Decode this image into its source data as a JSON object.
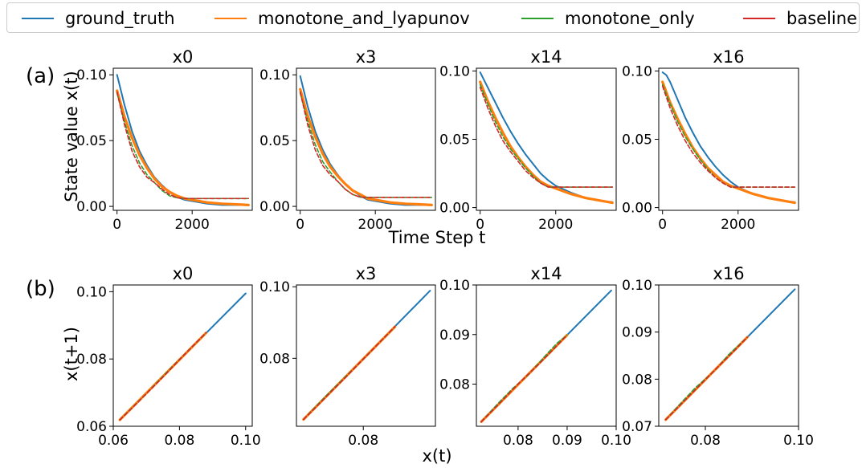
{
  "legend": {
    "entries": [
      {
        "label": "ground_truth",
        "color": "#1f77b4"
      },
      {
        "label": "monotone_and_lyapunov",
        "color": "#ff7f0e"
      },
      {
        "label": "monotone_only",
        "color": "#2ca02c"
      },
      {
        "label": "baseline",
        "color": "#d62728"
      }
    ]
  },
  "rows": {
    "a": {
      "tag": "(a)",
      "ylabel": "State value x(t)",
      "xlabel": "Time Step t"
    },
    "b": {
      "tag": "(b)",
      "ylabel": "x(t+1)",
      "xlabel": "x(t)"
    }
  },
  "chart_data": [
    {
      "type": "line",
      "title": "x0",
      "xlim": [
        -100,
        3600
      ],
      "ylim": [
        -0.003,
        0.105
      ],
      "xticks": [
        0,
        2000
      ],
      "xtick_labels": [
        "0",
        "2000"
      ],
      "yticks": [
        0.0,
        0.05,
        0.1
      ],
      "ytick_labels": [
        "0.00",
        "0.05",
        "0.10"
      ],
      "series": [
        {
          "name": "ground_truth",
          "x": [
            0,
            200,
            400,
            600,
            800,
            1000,
            1200,
            1400,
            1600,
            1800,
            2000,
            2400,
            2800,
            3200,
            3500
          ],
          "y": [
            0.1,
            0.077,
            0.057,
            0.042,
            0.031,
            0.022,
            0.016,
            0.011,
            0.007,
            0.005,
            0.004,
            0.002,
            0.001,
            0.001,
            0.001
          ]
        },
        {
          "name": "monotone_and_lyapunov",
          "x": [
            0,
            200,
            400,
            600,
            800,
            1000,
            1200,
            1400,
            1600,
            1800,
            2000,
            2400,
            2800,
            3200,
            3500
          ],
          "y": [
            0.088,
            0.068,
            0.052,
            0.039,
            0.029,
            0.021,
            0.015,
            0.011,
            0.008,
            0.006,
            0.005,
            0.003,
            0.002,
            0.0015,
            0.001
          ]
        },
        {
          "name": "monotone_only",
          "x": [
            0,
            200,
            400,
            600,
            800,
            1000,
            1200,
            1400,
            1600,
            1800,
            2000,
            2400,
            2800,
            3200,
            3500
          ],
          "y": [
            0.086,
            0.064,
            0.046,
            0.033,
            0.024,
            0.018,
            0.012,
            0.008,
            0.0065,
            0.006,
            0.006,
            0.006,
            0.006,
            0.006,
            0.006
          ]
        },
        {
          "name": "baseline",
          "x": [
            0,
            200,
            400,
            600,
            800,
            1000,
            1200,
            1400,
            1600,
            1800,
            2000,
            2400,
            2800,
            3200,
            3500
          ],
          "y": [
            0.087,
            0.062,
            0.042,
            0.03,
            0.022,
            0.018,
            0.013,
            0.009,
            0.0065,
            0.006,
            0.006,
            0.006,
            0.006,
            0.006,
            0.006
          ]
        }
      ]
    },
    {
      "type": "line",
      "title": "x3",
      "xlim": [
        -100,
        3600
      ],
      "ylim": [
        -0.003,
        0.105
      ],
      "xticks": [
        0,
        2000
      ],
      "xtick_labels": [
        "0",
        "2000"
      ],
      "yticks": [
        0.0,
        0.05,
        0.1
      ],
      "ytick_labels": [
        "0.00",
        "0.05",
        "0.10"
      ],
      "series": [
        {
          "name": "ground_truth",
          "x": [
            0,
            200,
            400,
            600,
            800,
            1000,
            1200,
            1400,
            1600,
            1800,
            2000,
            2400,
            2800,
            3200,
            3500
          ],
          "y": [
            0.099,
            0.076,
            0.057,
            0.043,
            0.032,
            0.024,
            0.017,
            0.012,
            0.008,
            0.005,
            0.004,
            0.002,
            0.001,
            0.001,
            0.001
          ]
        },
        {
          "name": "monotone_and_lyapunov",
          "x": [
            0,
            200,
            400,
            600,
            800,
            1000,
            1200,
            1400,
            1600,
            1800,
            2000,
            2400,
            2800,
            3200,
            3500
          ],
          "y": [
            0.089,
            0.069,
            0.053,
            0.04,
            0.03,
            0.023,
            0.017,
            0.012,
            0.009,
            0.006,
            0.005,
            0.003,
            0.002,
            0.0015,
            0.001
          ]
        },
        {
          "name": "monotone_only",
          "x": [
            0,
            200,
            400,
            600,
            800,
            1000,
            1200,
            1400,
            1600,
            1800,
            2000,
            2400,
            2800,
            3200,
            3500
          ],
          "y": [
            0.086,
            0.065,
            0.047,
            0.034,
            0.026,
            0.019,
            0.013,
            0.009,
            0.007,
            0.0068,
            0.0068,
            0.0068,
            0.0068,
            0.0068,
            0.0068
          ]
        },
        {
          "name": "baseline",
          "x": [
            0,
            200,
            400,
            600,
            800,
            1000,
            1200,
            1400,
            1600,
            1800,
            2000,
            2400,
            2800,
            3200,
            3500
          ],
          "y": [
            0.087,
            0.062,
            0.043,
            0.031,
            0.024,
            0.019,
            0.013,
            0.009,
            0.007,
            0.0068,
            0.0068,
            0.0068,
            0.0068,
            0.0068,
            0.0068
          ]
        }
      ]
    },
    {
      "type": "line",
      "title": "x14",
      "xlim": [
        -100,
        3600
      ],
      "ylim": [
        -0.002,
        0.102
      ],
      "xticks": [
        0,
        2000
      ],
      "xtick_labels": [
        "0",
        "2000"
      ],
      "yticks": [
        0.0,
        0.05,
        0.1
      ],
      "ytick_labels": [
        "0.00",
        "0.05",
        "0.10"
      ],
      "series": [
        {
          "name": "ground_truth",
          "x": [
            0,
            200,
            400,
            600,
            800,
            1000,
            1200,
            1400,
            1600,
            1800,
            2000,
            2400,
            2800,
            3200,
            3500
          ],
          "y": [
            0.099,
            0.088,
            0.077,
            0.066,
            0.056,
            0.047,
            0.039,
            0.032,
            0.025,
            0.02,
            0.016,
            0.011,
            0.007,
            0.005,
            0.004
          ]
        },
        {
          "name": "monotone_and_lyapunov",
          "x": [
            0,
            200,
            400,
            600,
            800,
            1000,
            1200,
            1400,
            1600,
            1800,
            2000,
            2400,
            2800,
            3200,
            3500
          ],
          "y": [
            0.092,
            0.078,
            0.066,
            0.055,
            0.045,
            0.037,
            0.03,
            0.024,
            0.019,
            0.016,
            0.014,
            0.01,
            0.007,
            0.005,
            0.0035
          ]
        },
        {
          "name": "monotone_only",
          "x": [
            0,
            200,
            400,
            600,
            800,
            1000,
            1200,
            1400,
            1600,
            1800,
            2000,
            2400,
            2800,
            3200,
            3500
          ],
          "y": [
            0.09,
            0.076,
            0.063,
            0.052,
            0.043,
            0.036,
            0.029,
            0.023,
            0.018,
            0.015,
            0.015,
            0.015,
            0.015,
            0.015,
            0.015
          ]
        },
        {
          "name": "baseline",
          "x": [
            0,
            200,
            400,
            600,
            800,
            1000,
            1200,
            1400,
            1600,
            1800,
            2000,
            2400,
            2800,
            3200,
            3500
          ],
          "y": [
            0.088,
            0.073,
            0.06,
            0.049,
            0.041,
            0.034,
            0.027,
            0.022,
            0.018,
            0.015,
            0.015,
            0.015,
            0.015,
            0.015,
            0.015
          ]
        }
      ]
    },
    {
      "type": "line",
      "title": "x16",
      "xlim": [
        -100,
        3600
      ],
      "ylim": [
        -0.002,
        0.102
      ],
      "xticks": [
        0,
        2000
      ],
      "xtick_labels": [
        "0",
        "2000"
      ],
      "yticks": [
        0.0,
        0.05,
        0.1
      ],
      "ytick_labels": [
        "0.00",
        "0.05",
        "0.10"
      ],
      "series": [
        {
          "name": "ground_truth",
          "x": [
            0,
            100,
            200,
            400,
            600,
            800,
            1000,
            1200,
            1400,
            1600,
            1800,
            2000,
            2400,
            2800,
            3200,
            3500
          ],
          "y": [
            0.099,
            0.097,
            0.092,
            0.079,
            0.066,
            0.055,
            0.045,
            0.037,
            0.03,
            0.024,
            0.019,
            0.015,
            0.01,
            0.007,
            0.005,
            0.004
          ]
        },
        {
          "name": "monotone_and_lyapunov",
          "x": [
            0,
            200,
            400,
            600,
            800,
            1000,
            1200,
            1400,
            1600,
            1800,
            2000,
            2400,
            2800,
            3200,
            3500
          ],
          "y": [
            0.092,
            0.077,
            0.065,
            0.054,
            0.044,
            0.036,
            0.029,
            0.024,
            0.019,
            0.016,
            0.014,
            0.01,
            0.007,
            0.005,
            0.0035
          ]
        },
        {
          "name": "monotone_only",
          "x": [
            0,
            200,
            400,
            600,
            800,
            1000,
            1200,
            1400,
            1600,
            1800,
            2000,
            2400,
            2800,
            3200,
            3500
          ],
          "y": [
            0.09,
            0.076,
            0.063,
            0.052,
            0.043,
            0.035,
            0.028,
            0.022,
            0.018,
            0.015,
            0.015,
            0.015,
            0.015,
            0.015,
            0.015
          ]
        },
        {
          "name": "baseline",
          "x": [
            0,
            200,
            400,
            600,
            800,
            1000,
            1200,
            1400,
            1600,
            1800,
            2000,
            2400,
            2800,
            3200,
            3500
          ],
          "y": [
            0.089,
            0.073,
            0.06,
            0.049,
            0.04,
            0.033,
            0.027,
            0.022,
            0.018,
            0.015,
            0.015,
            0.015,
            0.015,
            0.015,
            0.015
          ]
        }
      ]
    },
    {
      "type": "line",
      "title": "x0",
      "xlim": [
        0.06,
        0.102
      ],
      "ylim": [
        0.06,
        0.102
      ],
      "xticks": [
        0.06,
        0.08,
        0.1
      ],
      "xtick_labels": [
        "0.06",
        "0.08",
        "0.10"
      ],
      "yticks": [
        0.06,
        0.08,
        0.1
      ],
      "ytick_labels": [
        "0.06",
        "0.08",
        "0.10"
      ],
      "series": [
        {
          "name": "ground_truth",
          "x": [
            0.062,
            0.1
          ],
          "y": [
            0.0619,
            0.0995
          ]
        },
        {
          "name": "monotone_and_lyapunov",
          "x": [
            0.062,
            0.088
          ],
          "y": [
            0.0619,
            0.0877
          ]
        },
        {
          "name": "monotone_only",
          "x": [
            0.062,
            0.07,
            0.078,
            0.088
          ],
          "y": [
            0.0619,
            0.0697,
            0.0779,
            0.0877
          ]
        },
        {
          "name": "baseline",
          "x": [
            0.062,
            0.066,
            0.07,
            0.074,
            0.078,
            0.082,
            0.088
          ],
          "y": [
            0.0619,
            0.0657,
            0.0697,
            0.0736,
            0.0777,
            0.0818,
            0.0878
          ]
        }
      ]
    },
    {
      "type": "line",
      "title": "x3",
      "xlim": [
        0.061,
        0.1005
      ],
      "ylim": [
        0.061,
        0.1005
      ],
      "xticks": [
        0.08
      ],
      "xtick_labels": [
        "0.08"
      ],
      "yticks": [
        0.08,
        0.1
      ],
      "ytick_labels": [
        "0.08",
        "0.10"
      ],
      "series": [
        {
          "name": "ground_truth",
          "x": [
            0.063,
            0.099
          ],
          "y": [
            0.0629,
            0.0989
          ]
        },
        {
          "name": "monotone_and_lyapunov",
          "x": [
            0.063,
            0.089
          ],
          "y": [
            0.0629,
            0.0888
          ]
        },
        {
          "name": "monotone_only",
          "x": [
            0.063,
            0.07,
            0.078,
            0.089
          ],
          "y": [
            0.0629,
            0.0701,
            0.0778,
            0.0888
          ]
        },
        {
          "name": "baseline",
          "x": [
            0.063,
            0.067,
            0.071,
            0.075,
            0.079,
            0.083,
            0.089
          ],
          "y": [
            0.0629,
            0.0668,
            0.0708,
            0.0747,
            0.0788,
            0.0828,
            0.0889
          ]
        }
      ]
    },
    {
      "type": "line",
      "title": "x14",
      "xlim": [
        0.0715,
        0.1
      ],
      "ylim": [
        0.0715,
        0.1
      ],
      "xticks": [
        0.08,
        0.09,
        0.1
      ],
      "xtick_labels": [
        "0.08",
        "0.09",
        "0.10"
      ],
      "yticks": [
        0.08,
        0.09,
        0.1
      ],
      "ytick_labels": [
        "0.08",
        "0.09",
        "0.10"
      ],
      "series": [
        {
          "name": "ground_truth",
          "x": [
            0.0725,
            0.099
          ],
          "y": [
            0.0724,
            0.0989
          ]
        },
        {
          "name": "monotone_and_lyapunov",
          "x": [
            0.0725,
            0.09
          ],
          "y": [
            0.0724,
            0.0899
          ]
        },
        {
          "name": "monotone_only",
          "x": [
            0.0725,
            0.076,
            0.079,
            0.082,
            0.086,
            0.088,
            0.09
          ],
          "y": [
            0.0724,
            0.0762,
            0.0792,
            0.0818,
            0.0862,
            0.0883,
            0.0899
          ]
        },
        {
          "name": "baseline",
          "x": [
            0.0725,
            0.076,
            0.08,
            0.084,
            0.087,
            0.09
          ],
          "y": [
            0.0724,
            0.0759,
            0.08,
            0.0838,
            0.0868,
            0.0899
          ]
        }
      ]
    },
    {
      "type": "line",
      "title": "x16",
      "xlim": [
        0.07,
        0.1
      ],
      "ylim": [
        0.07,
        0.1
      ],
      "xticks": [
        0.08,
        0.1
      ],
      "xtick_labels": [
        "0.08",
        "0.10"
      ],
      "yticks": [
        0.07,
        0.08,
        0.09,
        0.1
      ],
      "ytick_labels": [
        "0.07",
        "0.08",
        "0.09",
        "0.10"
      ],
      "series": [
        {
          "name": "ground_truth",
          "x": [
            0.0715,
            0.0992
          ],
          "y": [
            0.0714,
            0.0991
          ]
        },
        {
          "name": "monotone_and_lyapunov",
          "x": [
            0.0715,
            0.089
          ],
          "y": [
            0.0714,
            0.0889
          ]
        },
        {
          "name": "monotone_only",
          "x": [
            0.0715,
            0.075,
            0.078,
            0.082,
            0.085,
            0.089
          ],
          "y": [
            0.0714,
            0.0752,
            0.0783,
            0.0818,
            0.0852,
            0.0889
          ]
        },
        {
          "name": "baseline",
          "x": [
            0.0715,
            0.075,
            0.079,
            0.083,
            0.086,
            0.089
          ],
          "y": [
            0.0714,
            0.0749,
            0.0789,
            0.0829,
            0.0858,
            0.0889
          ]
        }
      ]
    }
  ]
}
